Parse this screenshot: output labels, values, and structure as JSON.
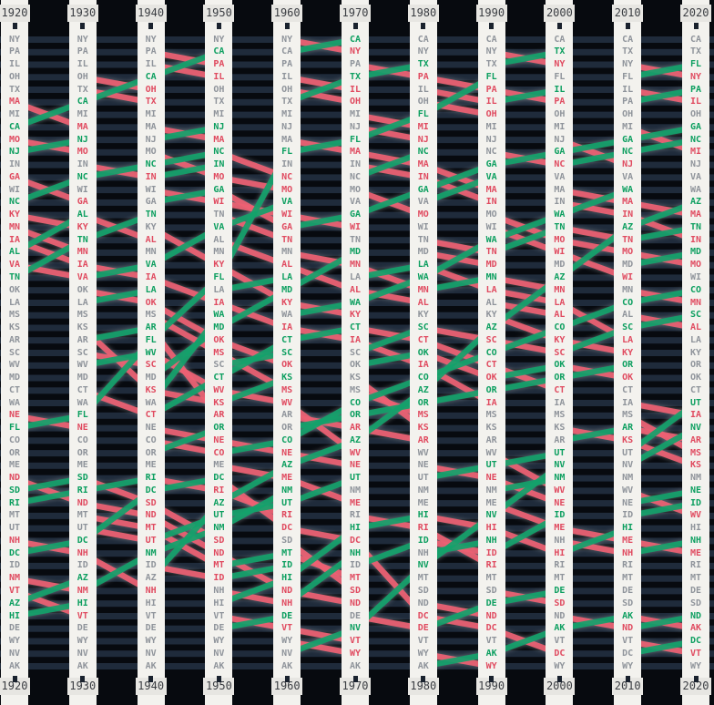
{
  "chart_data": {
    "type": "bump",
    "description_axis_top_bottom_labels": [
      "1920",
      "1930",
      "1940",
      "1950",
      "1960",
      "1970",
      "1980",
      "1990",
      "2000",
      "2010",
      "2020"
    ],
    "years": [
      1920,
      1930,
      1940,
      1950,
      1960,
      1970,
      1980,
      1990,
      2000,
      2010,
      2020
    ],
    "rankings": {
      "1920": [
        "NY",
        "PA",
        "IL",
        "OH",
        "TX",
        "MA",
        "MI",
        "CA",
        "MO",
        "NJ",
        "IN",
        "GA",
        "WI",
        "NC",
        "KY",
        "MN",
        "IA",
        "AL",
        "VA",
        "TN",
        "OK",
        "LA",
        "MS",
        "KS",
        "AR",
        "SC",
        "WV",
        "MD",
        "CT",
        "WA",
        "NE",
        "FL",
        "CO",
        "OR",
        "ME",
        "ND",
        "SD",
        "RI",
        "MT",
        "UT",
        "NH",
        "DC",
        "ID",
        "NM",
        "VT",
        "AZ",
        "HI",
        "DE",
        "WY",
        "NV",
        "AK"
      ],
      "1930": [
        "NY",
        "PA",
        "IL",
        "OH",
        "TX",
        "CA",
        "MI",
        "MA",
        "NJ",
        "MO",
        "IN",
        "NC",
        "WI",
        "GA",
        "AL",
        "KY",
        "TN",
        "MN",
        "IA",
        "VA",
        "OK",
        "LA",
        "MS",
        "KS",
        "AR",
        "SC",
        "WV",
        "MD",
        "CT",
        "WA",
        "FL",
        "NE",
        "CO",
        "OR",
        "ME",
        "SD",
        "RI",
        "ND",
        "MT",
        "UT",
        "DC",
        "NH",
        "ID",
        "AZ",
        "NM",
        "HI",
        "VT",
        "DE",
        "WY",
        "NV",
        "AK"
      ],
      "1940": [
        "NY",
        "PA",
        "IL",
        "CA",
        "OH",
        "TX",
        "MI",
        "MA",
        "NJ",
        "MO",
        "NC",
        "IN",
        "WI",
        "GA",
        "TN",
        "KY",
        "AL",
        "MN",
        "VA",
        "IA",
        "LA",
        "OK",
        "MS",
        "AR",
        "FL",
        "WV",
        "SC",
        "MD",
        "KS",
        "WA",
        "CT",
        "NE",
        "CO",
        "OR",
        "ME",
        "RI",
        "DC",
        "SD",
        "ND",
        "MT",
        "UT",
        "NM",
        "ID",
        "AZ",
        "NH",
        "HI",
        "VT",
        "DE",
        "WY",
        "NV",
        "AK"
      ],
      "1950": [
        "NY",
        "CA",
        "PA",
        "IL",
        "OH",
        "TX",
        "MI",
        "NJ",
        "MA",
        "NC",
        "IN",
        "MO",
        "GA",
        "WI",
        "TN",
        "VA",
        "AL",
        "MN",
        "KY",
        "FL",
        "LA",
        "IA",
        "WA",
        "MD",
        "OK",
        "MS",
        "SC",
        "CT",
        "WV",
        "KS",
        "AR",
        "OR",
        "NE",
        "CO",
        "ME",
        "DC",
        "RI",
        "AZ",
        "UT",
        "NM",
        "SD",
        "ND",
        "MT",
        "ID",
        "NH",
        "HI",
        "VT",
        "DE",
        "WY",
        "NV",
        "AK"
      ],
      "1960": [
        "NY",
        "CA",
        "PA",
        "IL",
        "OH",
        "TX",
        "MI",
        "NJ",
        "MA",
        "FL",
        "IN",
        "NC",
        "MO",
        "VA",
        "WI",
        "GA",
        "TN",
        "MN",
        "AL",
        "LA",
        "MD",
        "KY",
        "WA",
        "IA",
        "CT",
        "SC",
        "OK",
        "KS",
        "MS",
        "WV",
        "AR",
        "OR",
        "CO",
        "NE",
        "AZ",
        "ME",
        "NM",
        "UT",
        "RI",
        "DC",
        "SD",
        "MT",
        "ID",
        "HI",
        "ND",
        "NH",
        "DE",
        "VT",
        "WY",
        "NV",
        "AK"
      ],
      "1970": [
        "CA",
        "NY",
        "PA",
        "TX",
        "IL",
        "OH",
        "MI",
        "NJ",
        "FL",
        "MA",
        "IN",
        "NC",
        "MO",
        "VA",
        "GA",
        "WI",
        "TN",
        "MD",
        "MN",
        "LA",
        "AL",
        "WA",
        "KY",
        "CT",
        "IA",
        "SC",
        "OK",
        "KS",
        "MS",
        "CO",
        "OR",
        "AR",
        "AZ",
        "WV",
        "NE",
        "UT",
        "NM",
        "ME",
        "RI",
        "HI",
        "DC",
        "NH",
        "ID",
        "MT",
        "SD",
        "ND",
        "DE",
        "NV",
        "VT",
        "WY",
        "AK"
      ],
      "1980": [
        "CA",
        "NY",
        "TX",
        "PA",
        "IL",
        "OH",
        "FL",
        "MI",
        "NJ",
        "NC",
        "MA",
        "IN",
        "GA",
        "VA",
        "MO",
        "WI",
        "TN",
        "MD",
        "LA",
        "WA",
        "MN",
        "AL",
        "KY",
        "SC",
        "CT",
        "OK",
        "IA",
        "CO",
        "AZ",
        "OR",
        "MS",
        "KS",
        "AR",
        "WV",
        "NE",
        "UT",
        "NM",
        "ME",
        "HI",
        "RI",
        "ID",
        "NH",
        "NV",
        "MT",
        "SD",
        "ND",
        "DC",
        "DE",
        "VT",
        "WY",
        "AK"
      ],
      "1990": [
        "CA",
        "NY",
        "TX",
        "FL",
        "PA",
        "IL",
        "OH",
        "MI",
        "NJ",
        "NC",
        "GA",
        "VA",
        "MA",
        "IN",
        "MO",
        "WI",
        "WA",
        "TN",
        "MD",
        "MN",
        "LA",
        "AL",
        "KY",
        "AZ",
        "SC",
        "CO",
        "CT",
        "OK",
        "OR",
        "IA",
        "MS",
        "KS",
        "AR",
        "WV",
        "UT",
        "NE",
        "NM",
        "ME",
        "NV",
        "HI",
        "NH",
        "ID",
        "RI",
        "MT",
        "SD",
        "DE",
        "ND",
        "DC",
        "VT",
        "AK",
        "WY"
      ],
      "2000": [
        "CA",
        "TX",
        "NY",
        "FL",
        "IL",
        "PA",
        "OH",
        "MI",
        "NJ",
        "GA",
        "NC",
        "VA",
        "MA",
        "IN",
        "WA",
        "TN",
        "MO",
        "WI",
        "MD",
        "AZ",
        "MN",
        "LA",
        "AL",
        "CO",
        "KY",
        "SC",
        "OK",
        "OR",
        "CT",
        "IA",
        "MS",
        "KS",
        "AR",
        "UT",
        "NV",
        "NM",
        "WV",
        "NE",
        "ID",
        "ME",
        "NH",
        "HI",
        "RI",
        "MT",
        "DE",
        "SD",
        "ND",
        "AK",
        "VT",
        "DC",
        "WY"
      ],
      "2010": [
        "CA",
        "TX",
        "NY",
        "FL",
        "IL",
        "PA",
        "OH",
        "MI",
        "GA",
        "NC",
        "NJ",
        "VA",
        "WA",
        "MA",
        "IN",
        "AZ",
        "TN",
        "MO",
        "MD",
        "WI",
        "MN",
        "CO",
        "AL",
        "SC",
        "LA",
        "KY",
        "OR",
        "OK",
        "CT",
        "IA",
        "MS",
        "AR",
        "KS",
        "UT",
        "NV",
        "NM",
        "WV",
        "NE",
        "ID",
        "HI",
        "ME",
        "NH",
        "RI",
        "MT",
        "DE",
        "SD",
        "AK",
        "ND",
        "VT",
        "DC",
        "WY"
      ],
      "2020": [
        "CA",
        "TX",
        "FL",
        "NY",
        "PA",
        "IL",
        "OH",
        "GA",
        "NC",
        "MI",
        "NJ",
        "VA",
        "WA",
        "AZ",
        "MA",
        "TN",
        "IN",
        "MD",
        "MO",
        "WI",
        "CO",
        "MN",
        "SC",
        "AL",
        "LA",
        "KY",
        "OR",
        "OK",
        "CT",
        "UT",
        "IA",
        "NV",
        "AR",
        "MS",
        "KS",
        "NM",
        "NE",
        "ID",
        "WV",
        "HI",
        "NH",
        "ME",
        "RI",
        "MT",
        "DE",
        "SD",
        "ND",
        "AK",
        "DC",
        "VT",
        "WY"
      ]
    },
    "first_column_trend": [
      "same",
      "same",
      "same",
      "same",
      "same",
      "down",
      "same",
      "up",
      "down",
      "up",
      "same",
      "down",
      "same",
      "up",
      "down",
      "down",
      "down",
      "up",
      "down",
      "up",
      "same",
      "same",
      "same",
      "same",
      "same",
      "same",
      "same",
      "same",
      "same",
      "same",
      "down",
      "up",
      "same",
      "same",
      "same",
      "down",
      "up",
      "up",
      "same",
      "same",
      "down",
      "up",
      "same",
      "down",
      "down",
      "up",
      "up",
      "same",
      "same",
      "same",
      "same"
    ],
    "colors": {
      "up_line": "#14a26b",
      "up_text": "#0d9f60",
      "down_line": "#ee6173",
      "down_text": "#e04b60",
      "same_text": "#8f949b",
      "track": "#1f2b3b",
      "halo": "#8a8d92",
      "column_bg": "#f3f2ee",
      "year_box_bg": "#e7e6e2",
      "year_text": "#3a3d42",
      "page_bg": "#070a0f"
    },
    "layout_hints": {
      "grid": "horizontal rank tracks",
      "legend": "none visible",
      "columns": 11,
      "rows_per_column": 51
    }
  }
}
